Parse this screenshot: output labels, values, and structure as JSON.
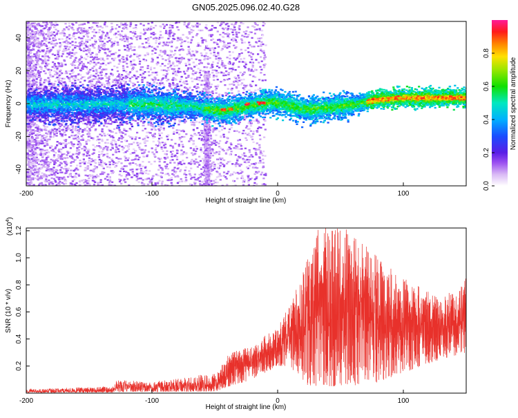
{
  "figure": {
    "title": "GN05.2025.096.02.40.G28"
  },
  "chart_data": [
    {
      "type": "heatmap",
      "xlabel": "Height of straight line (km)",
      "ylabel": "Frequency (Hz)",
      "xlim": [
        -200,
        150
      ],
      "ylim": [
        -50,
        50
      ],
      "xticks": [
        -200,
        -100,
        0,
        100
      ],
      "yticks": [
        -40,
        -20,
        0,
        20,
        40
      ],
      "colorbar": {
        "label": "Normalized spectral amplitude",
        "range": [
          0,
          1
        ],
        "ticks": [
          "0.0",
          "0.2",
          "0.4",
          "0.6",
          "0.8"
        ],
        "colormap": "white-purple-blue-cyan-green-yellow-red-magenta"
      },
      "ridge_centerline": [
        {
          "x": -200,
          "y": 0
        },
        {
          "x": -100,
          "y": 0
        },
        {
          "x": -70,
          "y": -1
        },
        {
          "x": -45,
          "y": -4
        },
        {
          "x": -30,
          "y": -2
        },
        {
          "x": -10,
          "y": 1
        },
        {
          "x": 0,
          "y": 1
        },
        {
          "x": 20,
          "y": -3
        },
        {
          "x": 40,
          "y": -2
        },
        {
          "x": 60,
          "y": 0
        },
        {
          "x": 80,
          "y": 3
        },
        {
          "x": 100,
          "y": 4
        },
        {
          "x": 150,
          "y": 4
        }
      ]
    },
    {
      "type": "line",
      "xlabel": "Height of straight line (km)",
      "ylabel": "SNR (10 * v/v)",
      "y_multiplier_label": "(x10",
      "y_multiplier_exp": "4",
      "y_multiplier_close": ")",
      "xlim": [
        -200,
        150
      ],
      "ylim": [
        0,
        1.22
      ],
      "xticks": [
        -200,
        -100,
        0,
        100
      ],
      "yticks": [
        "0.2",
        "0.4",
        "0.6",
        "0.8",
        "1.0",
        "1.2"
      ],
      "line_color": "#e8312b",
      "envelope": [
        {
          "x": -200,
          "lo": 0.005,
          "hi": 0.03
        },
        {
          "x": -130,
          "lo": 0.005,
          "hi": 0.05
        },
        {
          "x": -128,
          "lo": 0.01,
          "hi": 0.1
        },
        {
          "x": -100,
          "lo": 0.01,
          "hi": 0.08
        },
        {
          "x": -50,
          "lo": 0.01,
          "hi": 0.15
        },
        {
          "x": -38,
          "lo": 0.05,
          "hi": 0.3
        },
        {
          "x": -20,
          "lo": 0.1,
          "hi": 0.35
        },
        {
          "x": 0,
          "lo": 0.2,
          "hi": 0.5
        },
        {
          "x": 10,
          "lo": 0.2,
          "hi": 0.65
        },
        {
          "x": 22,
          "lo": 0.05,
          "hi": 0.95
        },
        {
          "x": 32,
          "lo": 0.05,
          "hi": 1.22
        },
        {
          "x": 60,
          "lo": 0.05,
          "hi": 1.22
        },
        {
          "x": 80,
          "lo": 0.08,
          "hi": 1.0
        },
        {
          "x": 100,
          "lo": 0.15,
          "hi": 0.85
        },
        {
          "x": 130,
          "lo": 0.25,
          "hi": 0.7
        },
        {
          "x": 150,
          "lo": 0.3,
          "hi": 0.85
        }
      ]
    }
  ]
}
